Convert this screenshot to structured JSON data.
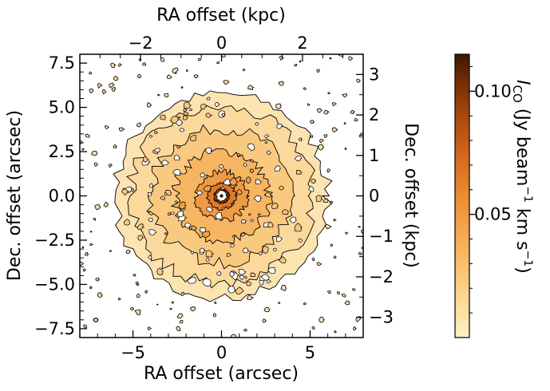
{
  "chart_data": {
    "type": "heatmap",
    "description_kind": "CO moment-0 intensity map with contours",
    "x": {
      "label": "RA offset (arcsec)",
      "range": [
        -8,
        8
      ],
      "ticks": [
        -5,
        0,
        5
      ],
      "tick_labels": [
        "−5",
        "0",
        "5"
      ]
    },
    "y": {
      "label": "Dec. offset (arcsec)",
      "range": [
        -8,
        8
      ],
      "ticks": [
        -7.5,
        -5.0,
        -2.5,
        0.0,
        2.5,
        5.0,
        7.5
      ],
      "tick_labels": [
        "−7.5",
        "−5.0",
        "−2.5",
        "0.0",
        "2.5",
        "5.0",
        "7.5"
      ]
    },
    "x2": {
      "label": "RA offset (kpc)",
      "range": [
        -3.5,
        3.5
      ],
      "ticks": [
        -2,
        0,
        2
      ],
      "tick_labels": [
        "−2",
        "0",
        "2"
      ]
    },
    "y2": {
      "label": "Dec. offset (kpc)",
      "range": [
        -3.5,
        3.5
      ],
      "ticks": [
        -3,
        -2,
        -1,
        0,
        1,
        2,
        3
      ],
      "tick_labels": [
        "−3",
        "−2",
        "−1",
        "0",
        "1",
        "2",
        "3"
      ]
    },
    "colorbar": {
      "label_text": "I",
      "label_sub": "CO",
      "label_units": " (Jy beam",
      "label_exp1": "−1",
      "label_units2": " km s",
      "label_exp2": "−1",
      "label_close": ")",
      "range": [
        0.0,
        0.115
      ],
      "ticks": [
        0.05,
        0.1
      ],
      "tick_labels": [
        "0.05",
        "0.10"
      ],
      "colormap": [
        "#fdf0c6",
        "#fbd58f",
        "#f6b25a",
        "#ec8c33",
        "#d2651b",
        "#a3440c",
        "#6b2a04",
        "#3d1600"
      ]
    },
    "emission": {
      "centre": [
        0.0,
        0.0
      ],
      "disk_radius_arcsec": 6.0,
      "peak_intensity": 0.11,
      "contour_color": "#000000"
    }
  }
}
